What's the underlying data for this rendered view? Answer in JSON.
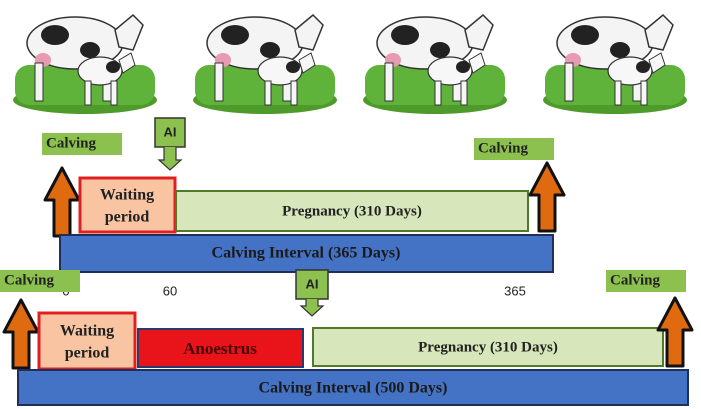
{
  "top": {
    "calving_left": "Calving",
    "ai": "AI",
    "calving_right": "Calving",
    "waiting_period": [
      "Waiting",
      "period"
    ],
    "pregnancy": "Pregnancy  (310 Days)",
    "calving_interval": "Calving Interval (365 Days)",
    "day_labels": [
      "0",
      "60",
      "365"
    ]
  },
  "bottom": {
    "calving_left": "Calving",
    "ai": "AI",
    "calving_right": "Calving",
    "waiting_period": [
      "Waiting",
      "period"
    ],
    "anoestrus": "Anoestrus",
    "pregnancy": "Pregnancy  (310 Days)",
    "calving_interval": "Calving Interval (500 Days)"
  }
}
